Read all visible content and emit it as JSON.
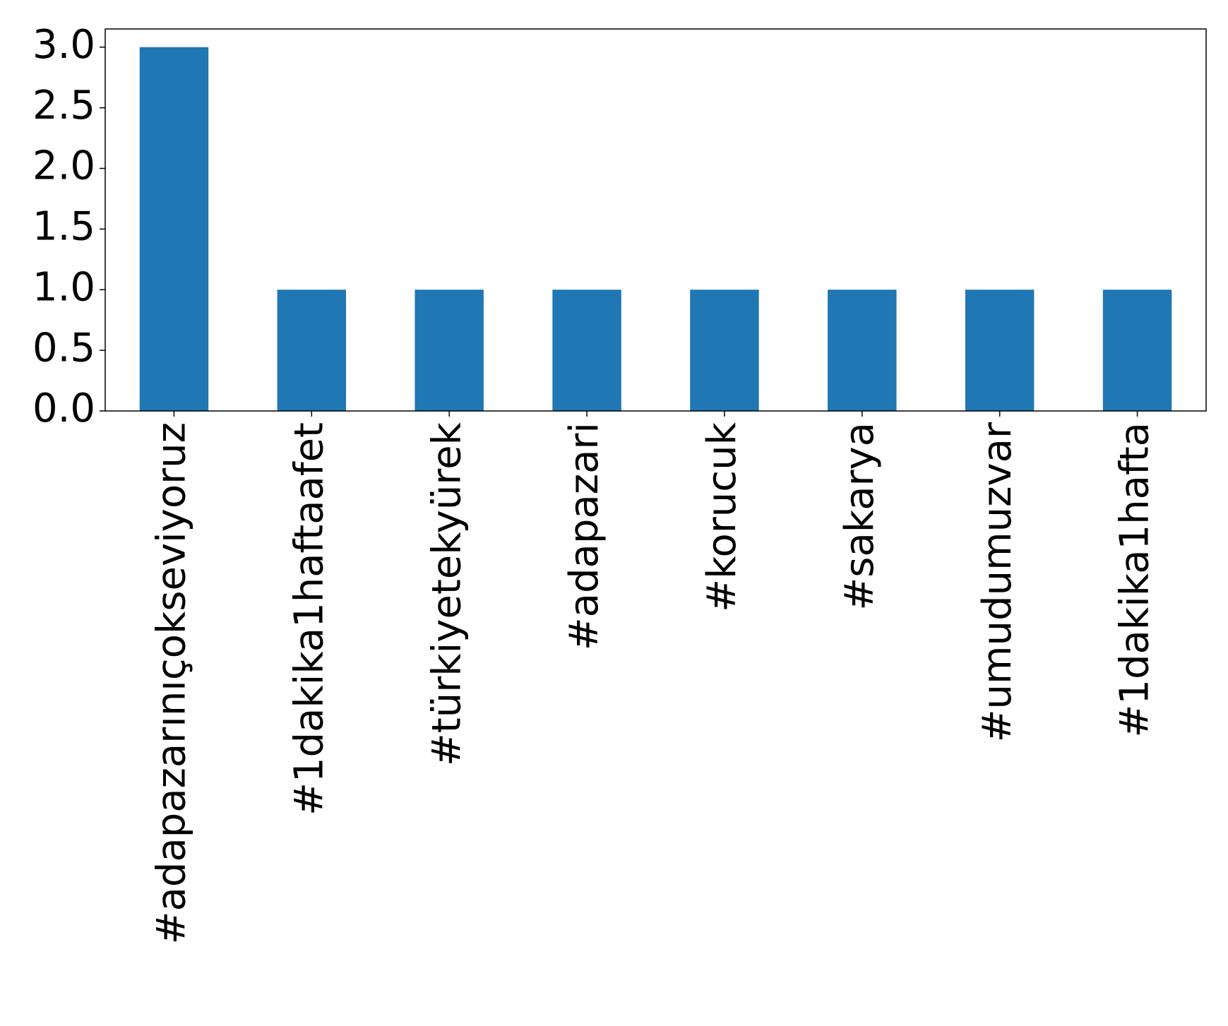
{
  "chart_data": {
    "type": "bar",
    "categories": [
      "#adapazarınıçokseviyoruz",
      "#1dakika1haftaafet",
      "#türkiyetekyürek",
      "#adapazari",
      "#korucuk",
      "#sakarya",
      "#umudumuzvar",
      "#1dakika1hafta"
    ],
    "values": [
      3,
      1,
      1,
      1,
      1,
      1,
      1,
      1
    ],
    "color": "#1f77b4",
    "ylim": [
      0,
      3.15
    ],
    "yticks": [
      {
        "value": 0,
        "label": "0.0"
      },
      0.5,
      {
        "value": 1,
        "label": "1.0"
      },
      1.5,
      {
        "value": 2,
        "label": "2.0"
      },
      2.5,
      {
        "value": 3,
        "label": "3.0"
      }
    ],
    "grid": false
  }
}
